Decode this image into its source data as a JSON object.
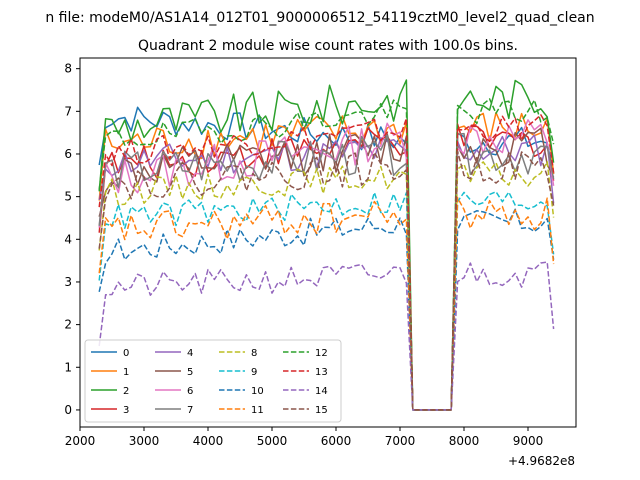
{
  "figure": {
    "suptitle": "n file: modeM0/AS1A14_012T01_9000006512_54119cztM0_level2_quad_clean",
    "title": "Quadrant 2 module wise count rates with 100.0s bins.",
    "x_offset_label": "+4.9682e8"
  },
  "chart_data": {
    "type": "line",
    "title": "Quadrant 2 module wise count rates with 100.0s bins.",
    "xlabel": "",
    "ylabel": "",
    "x_offset": 496820000,
    "xlim": [
      2000,
      9750
    ],
    "ylim": [
      -0.4,
      8.25
    ],
    "xticks": [
      2000,
      3000,
      4000,
      5000,
      6000,
      7000,
      8000,
      9000
    ],
    "yticks": [
      0,
      1,
      2,
      3,
      4,
      5,
      6,
      7,
      8
    ],
    "x_range": [
      2300,
      9400
    ],
    "gap": [
      7200,
      7800
    ],
    "grid": false,
    "legend": {
      "placement": "lower-left",
      "columns": 4
    },
    "series": [
      {
        "name": "0",
        "color": "#1f77b4",
        "dash": "solid",
        "level": 6.9,
        "end": 6.3,
        "amp": 0.22
      },
      {
        "name": "1",
        "color": "#ff7f0e",
        "dash": "solid",
        "level": 6.2,
        "end": 6.6,
        "amp": 0.28
      },
      {
        "name": "2",
        "color": "#2ca02c",
        "dash": "solid",
        "level": 6.6,
        "end": 7.3,
        "amp": 0.32
      },
      {
        "name": "3",
        "color": "#d62728",
        "dash": "solid",
        "level": 5.7,
        "end": 6.3,
        "amp": 0.25
      },
      {
        "name": "4",
        "color": "#9467bd",
        "dash": "solid",
        "level": 5.8,
        "end": 6.1,
        "amp": 0.25
      },
      {
        "name": "5",
        "color": "#8c564b",
        "dash": "solid",
        "level": 5.5,
        "end": 6.2,
        "amp": 0.3
      },
      {
        "name": "6",
        "color": "#e377c2",
        "dash": "solid",
        "level": 5.4,
        "end": 6.4,
        "amp": 0.3
      },
      {
        "name": "7",
        "color": "#7f7f7f",
        "dash": "solid",
        "level": 5.6,
        "end": 6.0,
        "amp": 0.3
      },
      {
        "name": "8",
        "color": "#bcbd22",
        "dash": "dashed",
        "level": 5.1,
        "end": 5.5,
        "amp": 0.2
      },
      {
        "name": "9",
        "color": "#17becf",
        "dash": "dashed",
        "level": 4.5,
        "end": 4.9,
        "amp": 0.2
      },
      {
        "name": "10",
        "color": "#1f77b4",
        "dash": "dashed",
        "level": 3.7,
        "end": 4.4,
        "amp": 0.2
      },
      {
        "name": "11",
        "color": "#ff7f0e",
        "dash": "dashed",
        "level": 4.2,
        "end": 4.6,
        "amp": 0.25
      },
      {
        "name": "12",
        "color": "#2ca02c",
        "dash": "dashed",
        "level": 6.3,
        "end": 7.0,
        "amp": 0.2
      },
      {
        "name": "13",
        "color": "#d62728",
        "dash": "dashed",
        "level": 6.0,
        "end": 6.6,
        "amp": 0.2
      },
      {
        "name": "14",
        "color": "#9467bd",
        "dash": "dashed",
        "level": 2.85,
        "end": 3.2,
        "amp": 0.2
      },
      {
        "name": "15",
        "color": "#8c564b",
        "dash": "dashed",
        "level": 5.3,
        "end": 5.7,
        "amp": 0.25
      }
    ]
  }
}
